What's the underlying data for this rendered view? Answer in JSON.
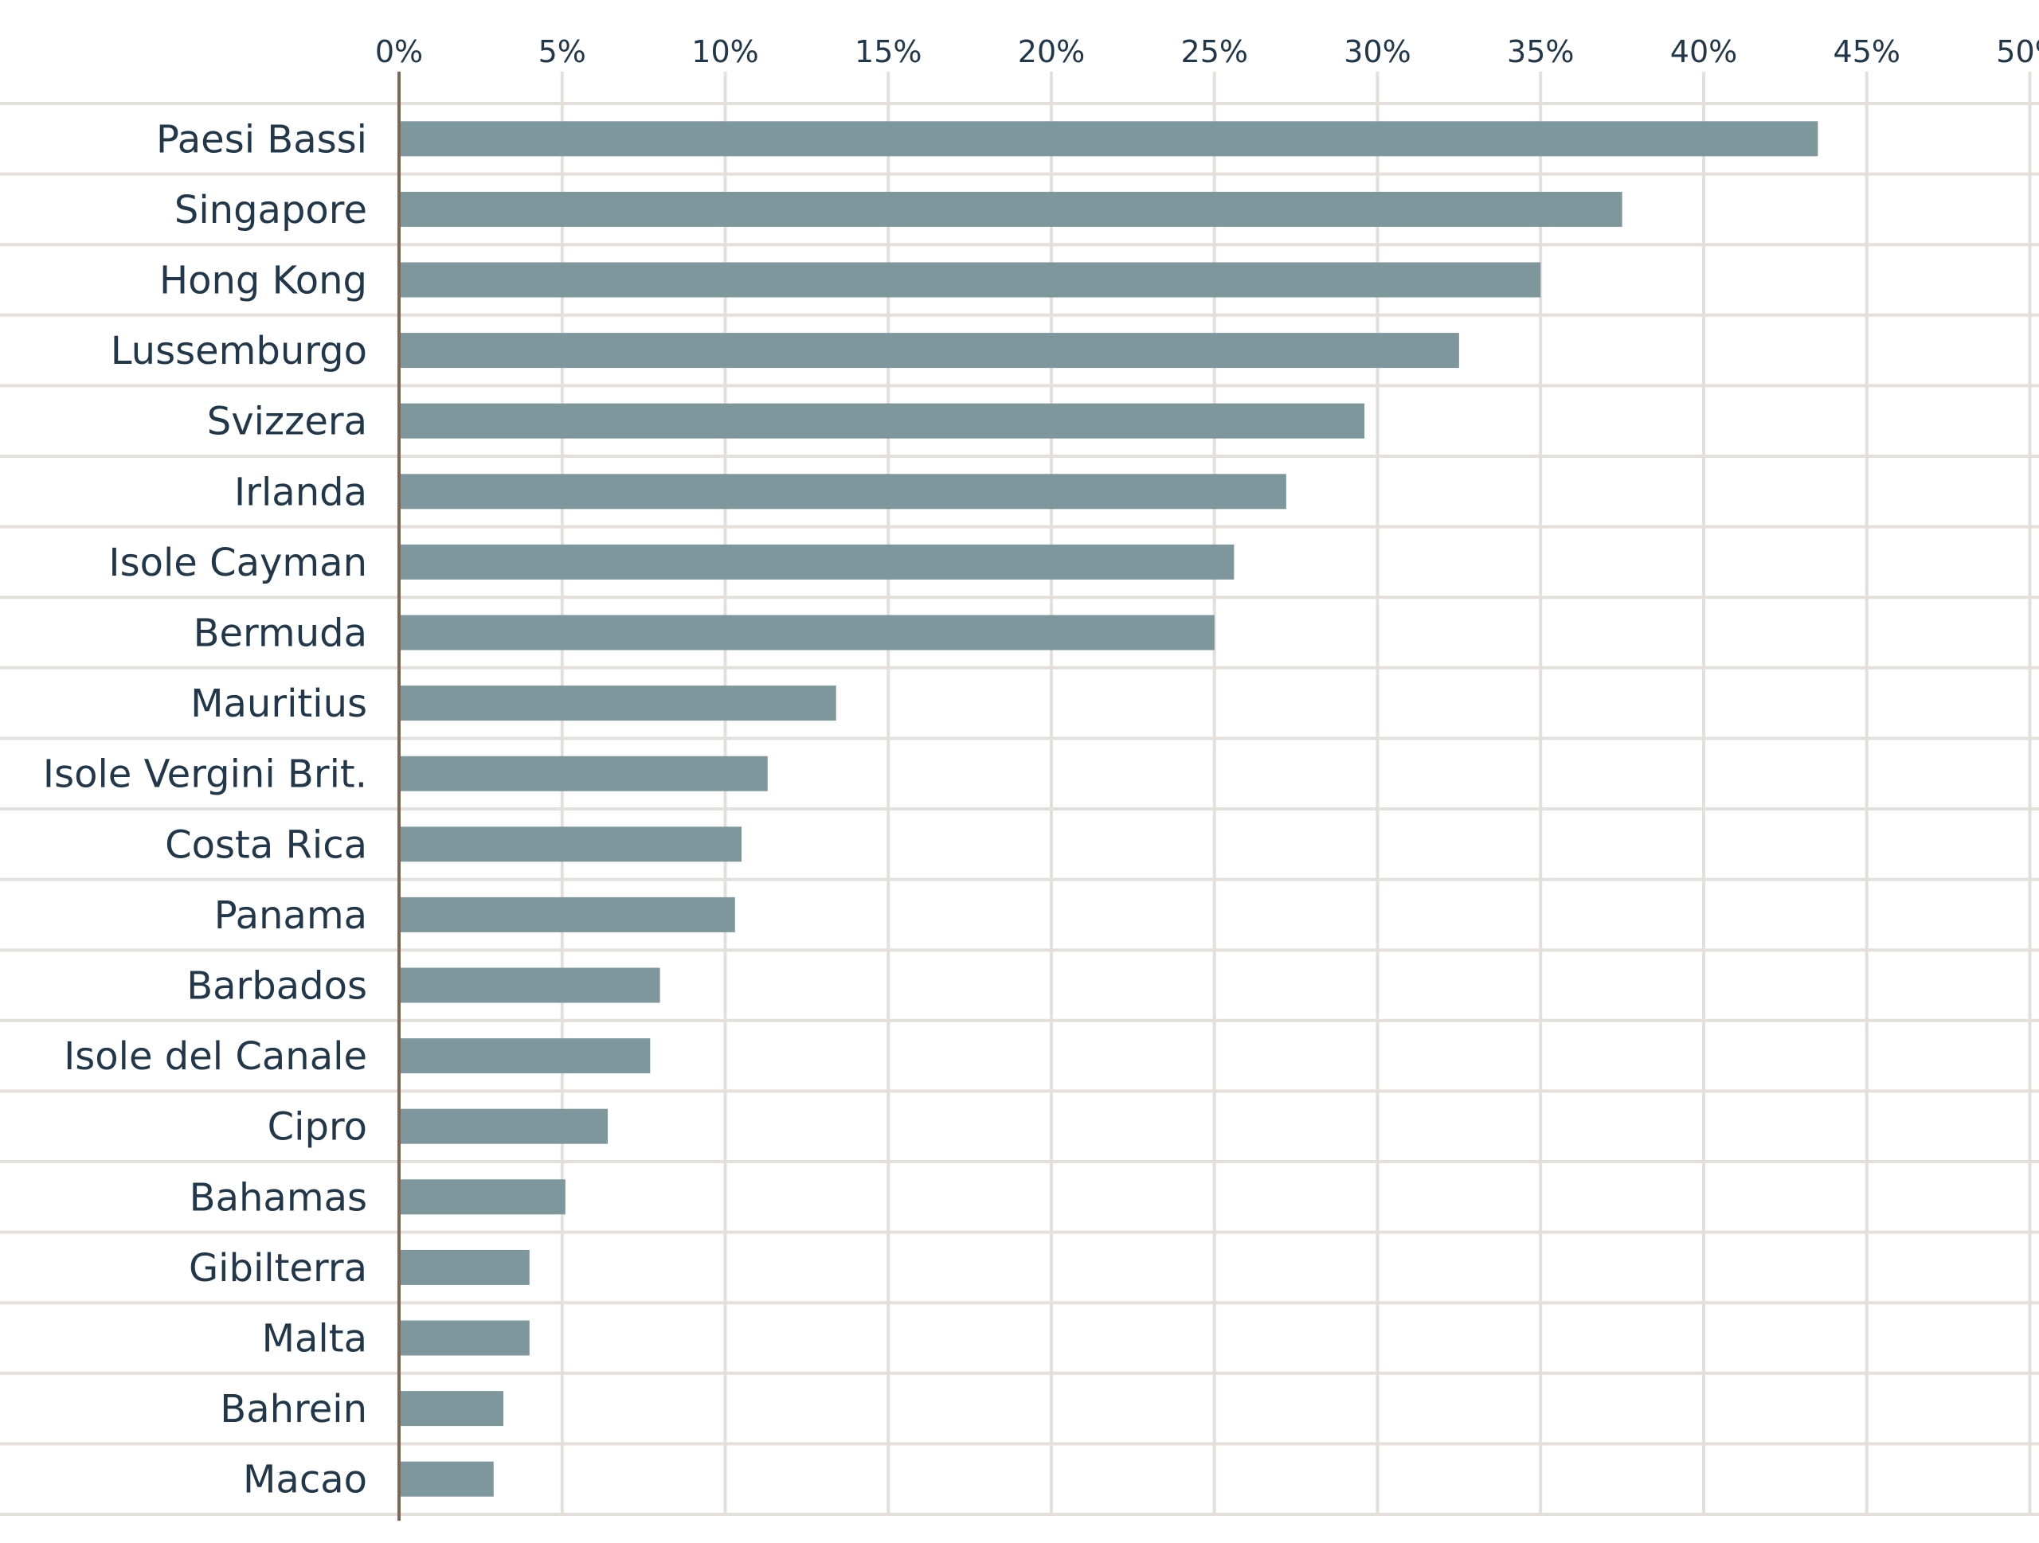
{
  "chart_data": {
    "type": "bar",
    "orientation": "horizontal",
    "title": "",
    "xlabel": "",
    "ylabel": "",
    "xlim": [
      0,
      50
    ],
    "ticks": [
      0,
      5,
      10,
      15,
      20,
      25,
      30,
      35,
      40,
      45,
      50
    ],
    "tick_suffix": "%",
    "x_axis_position": "top",
    "grid": true,
    "legend": "none",
    "categories": [
      "Paesi Bassi",
      "Singapore",
      "Hong Kong",
      "Lussemburgo",
      "Svizzera",
      "Irlanda",
      "Isole Cayman",
      "Bermuda",
      "Mauritius",
      "Isole Vergini Brit.",
      "Costa Rica",
      "Panama",
      "Barbados",
      "Isole del Canale",
      "Cipro",
      "Bahamas",
      "Gibilterra",
      "Malta",
      "Bahrein",
      "Macao"
    ],
    "values": [
      43.5,
      37.5,
      35.0,
      32.5,
      29.6,
      27.2,
      25.6,
      25.0,
      13.4,
      11.3,
      10.5,
      10.3,
      8.0,
      7.7,
      6.4,
      5.1,
      4.0,
      4.0,
      3.2,
      2.9
    ],
    "colors": {
      "bar": "#7e979c",
      "grid": "#e3dfdb",
      "axis": "#7c6858",
      "text": "#22384a"
    }
  }
}
